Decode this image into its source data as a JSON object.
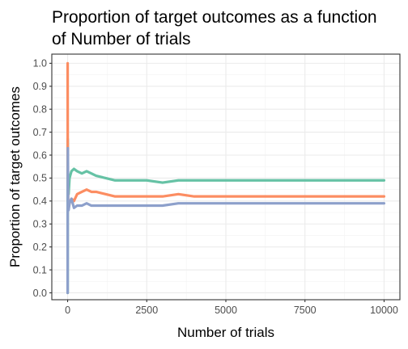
{
  "chart_data": {
    "type": "line",
    "title": "Proportion of target outcomes as a function of Number of trials",
    "xlabel": "Number of trials",
    "ylabel": "Proportion of target outcomes",
    "xlim": [
      -500,
      10500
    ],
    "ylim": [
      -0.03,
      1.04
    ],
    "x_ticks": [
      0,
      2500,
      5000,
      7500,
      10000
    ],
    "x_tick_labels": [
      "0",
      "2500",
      "5000",
      "7500",
      "10000"
    ],
    "y_ticks": [
      0.0,
      0.1,
      0.2,
      0.3,
      0.4,
      0.5,
      0.6,
      0.7,
      0.8,
      0.9,
      1.0
    ],
    "y_tick_labels": [
      "0.0",
      "0.1",
      "0.2",
      "0.3",
      "0.4",
      "0.5",
      "0.6",
      "0.7",
      "0.8",
      "0.9",
      "1.0"
    ],
    "grid": true,
    "legend": "none",
    "series": [
      {
        "color": "#66c2a5",
        "x": [
          1,
          3,
          8,
          15,
          30,
          60,
          120,
          200,
          300,
          450,
          600,
          750,
          900,
          1200,
          1500,
          2000,
          2500,
          3000,
          3500,
          4000,
          5000,
          6000,
          7000,
          8000,
          9000,
          10000
        ],
        "y": [
          0.0,
          0.67,
          0.38,
          0.47,
          0.43,
          0.5,
          0.53,
          0.54,
          0.53,
          0.52,
          0.53,
          0.52,
          0.51,
          0.5,
          0.49,
          0.49,
          0.49,
          0.48,
          0.49,
          0.49,
          0.49,
          0.49,
          0.49,
          0.49,
          0.49,
          0.49
        ]
      },
      {
        "color": "#fc8d62",
        "x": [
          1,
          3,
          8,
          15,
          30,
          60,
          120,
          200,
          300,
          450,
          600,
          750,
          900,
          1200,
          1500,
          2000,
          2500,
          3000,
          3500,
          4000,
          5000,
          6000,
          7000,
          8000,
          9000,
          10000
        ],
        "y": [
          1.0,
          0.67,
          0.5,
          0.4,
          0.37,
          0.39,
          0.41,
          0.4,
          0.43,
          0.44,
          0.45,
          0.44,
          0.44,
          0.43,
          0.42,
          0.42,
          0.42,
          0.42,
          0.43,
          0.42,
          0.42,
          0.42,
          0.42,
          0.42,
          0.42,
          0.42
        ]
      },
      {
        "color": "#8da0cb",
        "x": [
          1,
          3,
          8,
          15,
          30,
          60,
          120,
          200,
          300,
          450,
          600,
          750,
          900,
          1200,
          1500,
          2000,
          2500,
          3000,
          3500,
          4000,
          5000,
          6000,
          7000,
          8000,
          9000,
          10000
        ],
        "y": [
          0.0,
          0.33,
          0.63,
          0.4,
          0.36,
          0.39,
          0.41,
          0.37,
          0.38,
          0.38,
          0.39,
          0.38,
          0.38,
          0.38,
          0.38,
          0.38,
          0.38,
          0.38,
          0.39,
          0.39,
          0.39,
          0.39,
          0.39,
          0.39,
          0.39,
          0.39
        ]
      }
    ]
  }
}
